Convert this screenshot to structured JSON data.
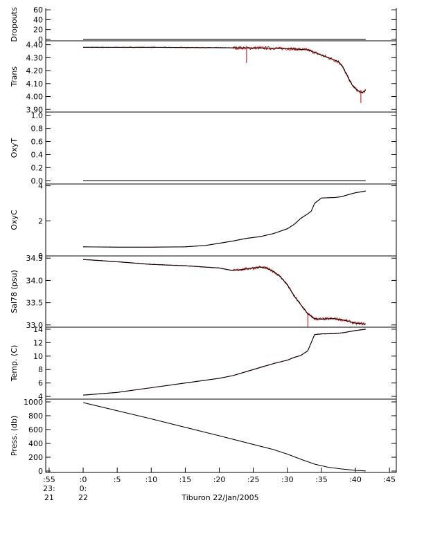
{
  "page": {
    "footer_title": "Tiburon 22/Jan/2005"
  },
  "time_axis": {
    "min": -5.5,
    "max": 46,
    "ticks": [
      {
        "value": -5,
        "lines": [
          ":55",
          "23:",
          "21"
        ]
      },
      {
        "value": 0,
        "lines": [
          ":0",
          "0:",
          "22"
        ]
      },
      {
        "value": 5,
        "lines": [
          ":5"
        ]
      },
      {
        "value": 10,
        "lines": [
          ":10"
        ]
      },
      {
        "value": 15,
        "lines": [
          ":15"
        ]
      },
      {
        "value": 20,
        "lines": [
          ":20"
        ]
      },
      {
        "value": 25,
        "lines": [
          ":25"
        ]
      },
      {
        "value": 30,
        "lines": [
          ":30"
        ]
      },
      {
        "value": 35,
        "lines": [
          ":35"
        ]
      },
      {
        "value": 40,
        "lines": [
          ":40"
        ]
      },
      {
        "value": 45,
        "lines": [
          ":45"
        ]
      }
    ]
  },
  "colors": {
    "smooth": "#000000",
    "raw": "#cc0000",
    "axis": "#000000"
  },
  "chart_data": [
    {
      "type": "line",
      "ylabel": "Dropouts",
      "ylim": [
        -3,
        63
      ],
      "yticks": [
        0,
        20,
        40,
        60
      ],
      "ytick_labels": [
        "0",
        "20",
        "40",
        "60"
      ],
      "x": [
        0,
        41.5
      ],
      "y": [
        0,
        0
      ],
      "raw_noise": 0,
      "spikes": []
    },
    {
      "type": "line",
      "ylabel": "Trans",
      "ylim": [
        3.88,
        4.43
      ],
      "yticks": [
        3.9,
        4.0,
        4.1,
        4.2,
        4.3,
        4.4
      ],
      "ytick_labels": [
        "3.90",
        "4.00",
        "4.10",
        "4.20",
        "4.30",
        "4.40"
      ],
      "x": [
        0,
        10,
        20,
        24,
        28,
        29,
        30,
        33,
        34,
        35,
        36,
        37,
        37.5,
        38,
        38.5,
        39,
        39.5,
        40,
        40.5,
        41,
        41.5
      ],
      "y": [
        4.38,
        4.38,
        4.377,
        4.375,
        4.373,
        4.37,
        4.37,
        4.36,
        4.34,
        4.32,
        4.3,
        4.28,
        4.27,
        4.24,
        4.19,
        4.14,
        4.09,
        4.06,
        4.04,
        4.03,
        4.05
      ],
      "raw_noise": 0.008,
      "spikes": [
        {
          "x": 24,
          "y": 4.26
        },
        {
          "x": 40.8,
          "y": 3.95
        }
      ]
    },
    {
      "type": "line",
      "ylabel": "OxyT",
      "ylim": [
        -0.05,
        1.05
      ],
      "yticks": [
        0.0,
        0.2,
        0.4,
        0.6,
        0.8,
        1.0
      ],
      "ytick_labels": [
        "0.0",
        "0.2",
        "0.4",
        "0.6",
        "0.8",
        "1.0"
      ],
      "x": [
        0,
        41.5
      ],
      "y": [
        0,
        0
      ],
      "raw_noise": 0,
      "spikes": []
    },
    {
      "type": "line",
      "ylabel": "OxyC",
      "ylim": [
        0,
        4.1
      ],
      "yticks": [
        0,
        2,
        4
      ],
      "ytick_labels": [
        "0",
        "2",
        "4"
      ],
      "x": [
        0,
        5,
        10,
        15,
        18,
        20,
        22,
        24,
        26,
        28,
        30,
        31,
        32,
        33,
        33.5,
        34,
        35,
        36,
        37,
        38,
        39,
        40,
        41.5
      ],
      "y": [
        0.52,
        0.5,
        0.5,
        0.52,
        0.6,
        0.72,
        0.85,
        1.0,
        1.1,
        1.28,
        1.55,
        1.8,
        2.15,
        2.4,
        2.55,
        3.0,
        3.3,
        3.32,
        3.33,
        3.38,
        3.5,
        3.6,
        3.7
      ],
      "raw_noise": 0.005,
      "spikes": []
    },
    {
      "type": "line",
      "ylabel": "Sal78 (psu)",
      "ylim": [
        32.95,
        34.55
      ],
      "yticks": [
        33.0,
        33.5,
        34.0,
        34.5
      ],
      "ytick_labels": [
        "33.0",
        "33.5",
        "34.0",
        "34.5"
      ],
      "x": [
        0,
        5,
        10,
        15,
        20,
        22,
        24,
        26,
        27,
        28,
        29,
        30,
        31,
        32,
        33,
        34,
        35,
        36,
        37,
        38,
        39,
        40,
        41.5
      ],
      "y": [
        34.47,
        34.42,
        34.36,
        34.33,
        34.28,
        34.22,
        34.26,
        34.3,
        34.27,
        34.2,
        34.08,
        33.9,
        33.65,
        33.45,
        33.25,
        33.14,
        33.13,
        33.14,
        33.14,
        33.12,
        33.08,
        33.04,
        33.02
      ],
      "raw_noise": 0.02,
      "spikes": [
        {
          "x": 33.0,
          "y": 32.96
        }
      ]
    },
    {
      "type": "line",
      "ylabel": "Temp. (C)",
      "ylim": [
        3.6,
        14.3
      ],
      "yticks": [
        4,
        6,
        8,
        10,
        12,
        14
      ],
      "ytick_labels": [
        "4",
        "6",
        "8",
        "10",
        "12",
        "14"
      ],
      "x": [
        0,
        5,
        10,
        15,
        20,
        22,
        25,
        28,
        30,
        31,
        32,
        33,
        33.5,
        34,
        35,
        37,
        38,
        40,
        41.5
      ],
      "y": [
        4.2,
        4.6,
        5.3,
        6.0,
        6.7,
        7.1,
        8.0,
        8.9,
        9.4,
        9.8,
        10.1,
        10.8,
        12.0,
        13.2,
        13.3,
        13.35,
        13.45,
        13.8,
        14.0
      ],
      "raw_noise": 0.03,
      "spikes": []
    },
    {
      "type": "line",
      "ylabel": "Press. (db)",
      "ylim": [
        -20,
        1040
      ],
      "yticks": [
        0,
        200,
        400,
        600,
        800,
        1000
      ],
      "ytick_labels": [
        "0",
        "200",
        "400",
        "600",
        "800",
        "1000"
      ],
      "x": [
        0,
        10,
        20,
        28,
        30,
        32,
        34,
        36,
        38,
        40,
        41.5
      ],
      "y": [
        990,
        755,
        510,
        310,
        245,
        170,
        100,
        55,
        30,
        10,
        2
      ],
      "raw_noise": 0,
      "spikes": []
    }
  ]
}
